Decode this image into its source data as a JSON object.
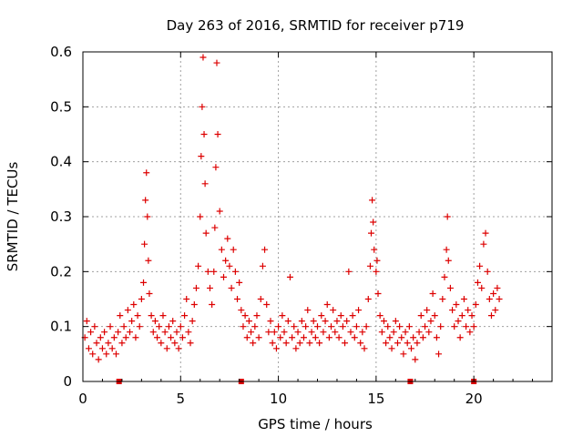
{
  "chart_data": {
    "type": "scatter",
    "title": "Day 263 of 2016, SRMTID for receiver p719",
    "xlabel": "GPS time / hours",
    "ylabel": "SRMTID / TECUs",
    "xlim": [
      0,
      24
    ],
    "ylim": [
      0,
      0.6
    ],
    "x_ticks": [
      0,
      5,
      10,
      15,
      20
    ],
    "y_ticks": [
      0,
      0.1,
      0.2,
      0.3,
      0.4,
      0.5,
      0.6
    ],
    "x_tick_labels": [
      "0",
      "5",
      "10",
      "15",
      "20"
    ],
    "y_tick_labels": [
      "0",
      "0.1",
      "0.2",
      "0.3",
      "0.4",
      "0.5",
      "0.6"
    ],
    "grid": true,
    "marker": "+",
    "series": [
      {
        "name": "SRMTID",
        "color": "#dd0000",
        "points": [
          [
            0.1,
            0.08
          ],
          [
            0.2,
            0.11
          ],
          [
            0.3,
            0.06
          ],
          [
            0.4,
            0.09
          ],
          [
            0.5,
            0.05
          ],
          [
            0.6,
            0.1
          ],
          [
            0.7,
            0.07
          ],
          [
            0.8,
            0.04
          ],
          [
            0.9,
            0.08
          ],
          [
            1.0,
            0.06
          ],
          [
            1.1,
            0.09
          ],
          [
            1.2,
            0.05
          ],
          [
            1.3,
            0.07
          ],
          [
            1.4,
            0.1
          ],
          [
            1.5,
            0.06
          ],
          [
            1.6,
            0.08
          ],
          [
            1.7,
            0.05
          ],
          [
            1.8,
            0.09
          ],
          [
            1.9,
            0.12
          ],
          [
            2.0,
            0.07
          ],
          [
            2.1,
            0.1
          ],
          [
            2.2,
            0.08
          ],
          [
            2.3,
            0.13
          ],
          [
            2.4,
            0.09
          ],
          [
            2.5,
            0.11
          ],
          [
            2.6,
            0.14
          ],
          [
            2.7,
            0.08
          ],
          [
            2.8,
            0.12
          ],
          [
            2.9,
            0.1
          ],
          [
            3.0,
            0.15
          ],
          [
            3.1,
            0.18
          ],
          [
            3.15,
            0.25
          ],
          [
            3.2,
            0.33
          ],
          [
            3.25,
            0.38
          ],
          [
            3.3,
            0.3
          ],
          [
            3.35,
            0.22
          ],
          [
            3.4,
            0.16
          ],
          [
            3.5,
            0.12
          ],
          [
            3.6,
            0.09
          ],
          [
            3.7,
            0.11
          ],
          [
            3.8,
            0.08
          ],
          [
            3.9,
            0.1
          ],
          [
            4.0,
            0.07
          ],
          [
            4.1,
            0.12
          ],
          [
            4.2,
            0.09
          ],
          [
            4.3,
            0.06
          ],
          [
            4.4,
            0.1
          ],
          [
            4.5,
            0.08
          ],
          [
            4.6,
            0.11
          ],
          [
            4.7,
            0.07
          ],
          [
            4.8,
            0.09
          ],
          [
            4.9,
            0.06
          ],
          [
            5.0,
            0.1
          ],
          [
            5.1,
            0.08
          ],
          [
            5.2,
            0.12
          ],
          [
            5.3,
            0.15
          ],
          [
            5.4,
            0.09
          ],
          [
            5.5,
            0.07
          ],
          [
            5.6,
            0.11
          ],
          [
            5.7,
            0.14
          ],
          [
            5.8,
            0.17
          ],
          [
            5.9,
            0.21
          ],
          [
            6.0,
            0.3
          ],
          [
            6.05,
            0.41
          ],
          [
            6.1,
            0.5
          ],
          [
            6.15,
            0.59
          ],
          [
            6.2,
            0.45
          ],
          [
            6.25,
            0.36
          ],
          [
            6.3,
            0.27
          ],
          [
            6.4,
            0.2
          ],
          [
            6.5,
            0.17
          ],
          [
            6.6,
            0.14
          ],
          [
            6.7,
            0.2
          ],
          [
            6.75,
            0.28
          ],
          [
            6.8,
            0.39
          ],
          [
            6.85,
            0.58
          ],
          [
            6.9,
            0.45
          ],
          [
            7.0,
            0.31
          ],
          [
            7.1,
            0.24
          ],
          [
            7.2,
            0.19
          ],
          [
            7.3,
            0.22
          ],
          [
            7.4,
            0.26
          ],
          [
            7.5,
            0.21
          ],
          [
            7.6,
            0.17
          ],
          [
            7.7,
            0.24
          ],
          [
            7.8,
            0.2
          ],
          [
            7.9,
            0.15
          ],
          [
            8.0,
            0.18
          ],
          [
            8.1,
            0.13
          ],
          [
            8.2,
            0.1
          ],
          [
            8.3,
            0.12
          ],
          [
            8.4,
            0.08
          ],
          [
            8.5,
            0.11
          ],
          [
            8.6,
            0.09
          ],
          [
            8.7,
            0.07
          ],
          [
            8.8,
            0.1
          ],
          [
            8.9,
            0.12
          ],
          [
            9.0,
            0.08
          ],
          [
            9.1,
            0.15
          ],
          [
            9.2,
            0.21
          ],
          [
            9.3,
            0.24
          ],
          [
            9.4,
            0.14
          ],
          [
            9.5,
            0.09
          ],
          [
            9.6,
            0.11
          ],
          [
            9.7,
            0.07
          ],
          [
            9.8,
            0.09
          ],
          [
            9.9,
            0.06
          ],
          [
            10.0,
            0.1
          ],
          [
            10.1,
            0.08
          ],
          [
            10.2,
            0.12
          ],
          [
            10.3,
            0.09
          ],
          [
            10.4,
            0.07
          ],
          [
            10.5,
            0.11
          ],
          [
            10.6,
            0.19
          ],
          [
            10.7,
            0.08
          ],
          [
            10.8,
            0.1
          ],
          [
            10.9,
            0.06
          ],
          [
            11.0,
            0.09
          ],
          [
            11.1,
            0.07
          ],
          [
            11.2,
            0.11
          ],
          [
            11.3,
            0.08
          ],
          [
            11.4,
            0.1
          ],
          [
            11.5,
            0.13
          ],
          [
            11.6,
            0.07
          ],
          [
            11.7,
            0.09
          ],
          [
            11.8,
            0.11
          ],
          [
            11.9,
            0.08
          ],
          [
            12.0,
            0.1
          ],
          [
            12.1,
            0.07
          ],
          [
            12.2,
            0.12
          ],
          [
            12.3,
            0.09
          ],
          [
            12.4,
            0.11
          ],
          [
            12.5,
            0.14
          ],
          [
            12.6,
            0.08
          ],
          [
            12.7,
            0.1
          ],
          [
            12.8,
            0.13
          ],
          [
            12.9,
            0.09
          ],
          [
            13.0,
            0.11
          ],
          [
            13.1,
            0.08
          ],
          [
            13.2,
            0.12
          ],
          [
            13.3,
            0.1
          ],
          [
            13.4,
            0.07
          ],
          [
            13.5,
            0.11
          ],
          [
            13.6,
            0.2
          ],
          [
            13.7,
            0.09
          ],
          [
            13.8,
            0.12
          ],
          [
            13.9,
            0.08
          ],
          [
            14.0,
            0.1
          ],
          [
            14.1,
            0.13
          ],
          [
            14.2,
            0.07
          ],
          [
            14.3,
            0.09
          ],
          [
            14.4,
            0.06
          ],
          [
            14.5,
            0.1
          ],
          [
            14.6,
            0.15
          ],
          [
            14.7,
            0.21
          ],
          [
            14.75,
            0.27
          ],
          [
            14.8,
            0.33
          ],
          [
            14.85,
            0.29
          ],
          [
            14.9,
            0.24
          ],
          [
            15.0,
            0.2
          ],
          [
            15.05,
            0.22
          ],
          [
            15.1,
            0.16
          ],
          [
            15.2,
            0.12
          ],
          [
            15.3,
            0.09
          ],
          [
            15.4,
            0.11
          ],
          [
            15.5,
            0.07
          ],
          [
            15.6,
            0.1
          ],
          [
            15.7,
            0.08
          ],
          [
            15.8,
            0.06
          ],
          [
            15.9,
            0.09
          ],
          [
            16.0,
            0.11
          ],
          [
            16.1,
            0.07
          ],
          [
            16.2,
            0.1
          ],
          [
            16.3,
            0.08
          ],
          [
            16.4,
            0.05
          ],
          [
            16.5,
            0.09
          ],
          [
            16.6,
            0.07
          ],
          [
            16.7,
            0.1
          ],
          [
            16.8,
            0.06
          ],
          [
            16.9,
            0.08
          ],
          [
            17.0,
            0.04
          ],
          [
            17.1,
            0.07
          ],
          [
            17.2,
            0.09
          ],
          [
            17.3,
            0.12
          ],
          [
            17.4,
            0.08
          ],
          [
            17.5,
            0.1
          ],
          [
            17.6,
            0.13
          ],
          [
            17.7,
            0.09
          ],
          [
            17.8,
            0.11
          ],
          [
            17.9,
            0.16
          ],
          [
            18.0,
            0.12
          ],
          [
            18.1,
            0.08
          ],
          [
            18.2,
            0.05
          ],
          [
            18.3,
            0.1
          ],
          [
            18.4,
            0.15
          ],
          [
            18.5,
            0.19
          ],
          [
            18.6,
            0.24
          ],
          [
            18.65,
            0.3
          ],
          [
            18.7,
            0.22
          ],
          [
            18.8,
            0.17
          ],
          [
            18.9,
            0.13
          ],
          [
            19.0,
            0.1
          ],
          [
            19.1,
            0.14
          ],
          [
            19.2,
            0.11
          ],
          [
            19.3,
            0.08
          ],
          [
            19.4,
            0.12
          ],
          [
            19.5,
            0.15
          ],
          [
            19.6,
            0.1
          ],
          [
            19.7,
            0.13
          ],
          [
            19.8,
            0.09
          ],
          [
            19.9,
            0.12
          ],
          [
            20.0,
            0.1
          ],
          [
            20.1,
            0.14
          ],
          [
            20.2,
            0.18
          ],
          [
            20.3,
            0.21
          ],
          [
            20.4,
            0.17
          ],
          [
            20.5,
            0.25
          ],
          [
            20.6,
            0.27
          ],
          [
            20.7,
            0.2
          ],
          [
            20.8,
            0.15
          ],
          [
            20.9,
            0.12
          ],
          [
            21.0,
            0.16
          ],
          [
            21.1,
            0.13
          ],
          [
            21.2,
            0.17
          ],
          [
            21.3,
            0.15
          ]
        ]
      }
    ],
    "gap_markers_x": [
      1.85,
      8.1,
      16.75,
      20.0
    ]
  }
}
